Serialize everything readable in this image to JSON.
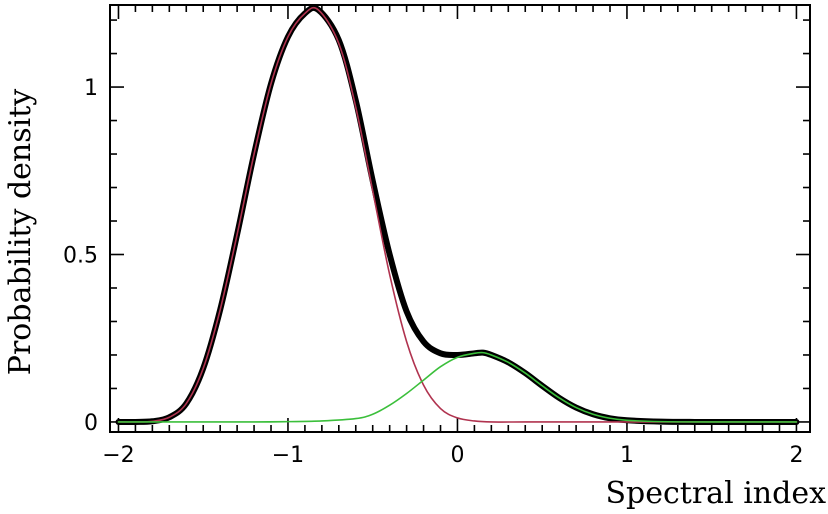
{
  "chart_data": {
    "type": "line",
    "title": "",
    "xlabel": "Spectral index",
    "ylabel": "Probability density",
    "xlim": [
      -2.05,
      2.08
    ],
    "ylim": [
      -0.03,
      1.245
    ],
    "x_ticks": [
      -2,
      -1,
      0,
      1,
      2
    ],
    "x_tick_labels": [
      "−2",
      "−1",
      "0",
      "1",
      "2"
    ],
    "y_ticks": [
      0,
      0.5,
      1
    ],
    "y_tick_labels": [
      "0",
      "0.5",
      "1"
    ],
    "grid": false,
    "legend": "none",
    "series": [
      {
        "color": "#000000",
        "x": [
          -2.0,
          -1.9,
          -1.8,
          -1.7,
          -1.6,
          -1.5,
          -1.4,
          -1.3,
          -1.2,
          -1.1,
          -1.0,
          -0.9,
          -0.82,
          -0.7,
          -0.6,
          -0.5,
          -0.4,
          -0.3,
          -0.2,
          -0.1,
          0.0,
          0.1,
          0.15,
          0.2,
          0.3,
          0.4,
          0.5,
          0.6,
          0.7,
          0.8,
          0.9,
          1.0,
          1.2,
          1.4,
          1.6,
          1.8,
          2.0
        ],
        "y": [
          0.0,
          0.0,
          0.002,
          0.014,
          0.055,
          0.16,
          0.335,
          0.56,
          0.8,
          1.01,
          1.15,
          1.22,
          1.23,
          1.14,
          0.96,
          0.72,
          0.5,
          0.33,
          0.24,
          0.205,
          0.2,
          0.205,
          0.207,
          0.2,
          0.178,
          0.146,
          0.108,
          0.072,
          0.043,
          0.023,
          0.011,
          0.005,
          0.001,
          0.0,
          0.0,
          0.0,
          0.0
        ]
      },
      {
        "color": "#b0334f",
        "x": [
          -2.0,
          -1.9,
          -1.8,
          -1.7,
          -1.6,
          -1.5,
          -1.4,
          -1.3,
          -1.2,
          -1.1,
          -1.0,
          -0.9,
          -0.82,
          -0.7,
          -0.6,
          -0.5,
          -0.4,
          -0.3,
          -0.2,
          -0.1,
          0.0,
          0.1,
          0.2,
          0.4,
          0.6,
          0.8,
          1.0,
          1.5,
          2.0
        ],
        "y": [
          0.0,
          0.0,
          0.002,
          0.014,
          0.055,
          0.16,
          0.335,
          0.56,
          0.8,
          1.01,
          1.15,
          1.22,
          1.23,
          1.13,
          0.94,
          0.69,
          0.44,
          0.24,
          0.11,
          0.04,
          0.012,
          0.003,
          0.0,
          0.0,
          0.0,
          0.0,
          0.0,
          0.0,
          0.0
        ]
      },
      {
        "color": "#3bbf3b",
        "x": [
          -2.0,
          -1.6,
          -1.2,
          -1.0,
          -0.8,
          -0.6,
          -0.5,
          -0.4,
          -0.3,
          -0.2,
          -0.1,
          0.0,
          0.1,
          0.15,
          0.2,
          0.3,
          0.4,
          0.5,
          0.6,
          0.7,
          0.8,
          0.9,
          1.0,
          1.2,
          1.5,
          2.0
        ],
        "y": [
          0.0,
          0.0,
          0.0,
          0.001,
          0.003,
          0.01,
          0.023,
          0.05,
          0.085,
          0.125,
          0.165,
          0.193,
          0.205,
          0.207,
          0.2,
          0.178,
          0.146,
          0.108,
          0.072,
          0.043,
          0.023,
          0.011,
          0.005,
          0.001,
          0.0,
          0.0
        ]
      }
    ]
  }
}
